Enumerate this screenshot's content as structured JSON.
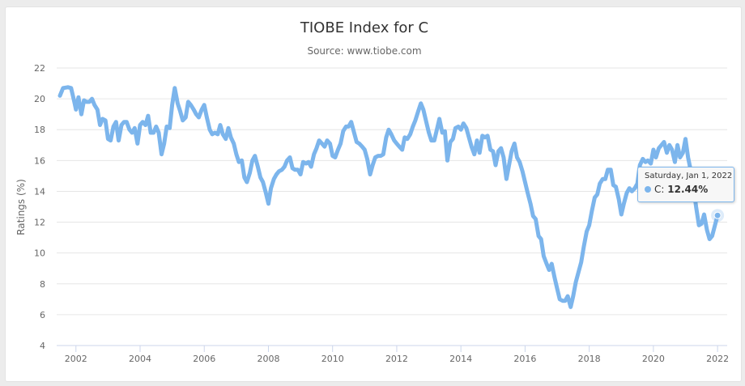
{
  "chart_data": {
    "type": "line",
    "title": "TIOBE Index for C",
    "subtitle": "Source: www.tiobe.com",
    "xlabel": "",
    "ylabel": "Ratings (%)",
    "xlim": [
      2001.4,
      2022.3
    ],
    "ylim": [
      4,
      22
    ],
    "x_ticks": [
      "2002",
      "2004",
      "2006",
      "2008",
      "2010",
      "2012",
      "2014",
      "2016",
      "2018",
      "2020",
      "2022"
    ],
    "y_ticks": [
      "4",
      "6",
      "8",
      "10",
      "12",
      "14",
      "16",
      "18",
      "20",
      "22"
    ],
    "grid": "horizontal",
    "legend": "none",
    "color": "#7cb5ec",
    "series": [
      {
        "points": [
          [
            2001.5,
            20.2
          ],
          [
            2001.6,
            20.7
          ],
          [
            2001.75,
            20.75
          ],
          [
            2001.85,
            20.7
          ],
          [
            2001.95,
            19.8
          ],
          [
            2002.0,
            19.3
          ],
          [
            2002.08,
            20.1
          ],
          [
            2002.17,
            19.0
          ],
          [
            2002.25,
            19.9
          ],
          [
            2002.33,
            19.8
          ],
          [
            2002.42,
            19.8
          ],
          [
            2002.5,
            20.0
          ],
          [
            2002.58,
            19.6
          ],
          [
            2002.67,
            19.3
          ],
          [
            2002.75,
            18.3
          ],
          [
            2002.83,
            18.7
          ],
          [
            2002.92,
            18.6
          ],
          [
            2003.0,
            17.4
          ],
          [
            2003.08,
            17.3
          ],
          [
            2003.17,
            18.2
          ],
          [
            2003.25,
            18.5
          ],
          [
            2003.33,
            17.3
          ],
          [
            2003.42,
            18.3
          ],
          [
            2003.5,
            18.5
          ],
          [
            2003.58,
            18.5
          ],
          [
            2003.67,
            18.0
          ],
          [
            2003.75,
            17.8
          ],
          [
            2003.83,
            18.1
          ],
          [
            2003.92,
            17.1
          ],
          [
            2004.0,
            18.3
          ],
          [
            2004.08,
            18.5
          ],
          [
            2004.17,
            18.3
          ],
          [
            2004.25,
            18.9
          ],
          [
            2004.33,
            17.8
          ],
          [
            2004.42,
            17.8
          ],
          [
            2004.5,
            18.2
          ],
          [
            2004.58,
            17.8
          ],
          [
            2004.67,
            16.4
          ],
          [
            2004.75,
            17.1
          ],
          [
            2004.83,
            18.2
          ],
          [
            2004.92,
            18.1
          ],
          [
            2005.0,
            19.6
          ],
          [
            2005.08,
            20.7
          ],
          [
            2005.17,
            19.7
          ],
          [
            2005.25,
            19.2
          ],
          [
            2005.33,
            18.6
          ],
          [
            2005.42,
            18.8
          ],
          [
            2005.5,
            19.8
          ],
          [
            2005.58,
            19.6
          ],
          [
            2005.67,
            19.3
          ],
          [
            2005.75,
            19.0
          ],
          [
            2005.83,
            18.8
          ],
          [
            2005.92,
            19.3
          ],
          [
            2006.0,
            19.6
          ],
          [
            2006.08,
            18.8
          ],
          [
            2006.17,
            18.0
          ],
          [
            2006.25,
            17.7
          ],
          [
            2006.33,
            17.8
          ],
          [
            2006.42,
            17.7
          ],
          [
            2006.5,
            18.3
          ],
          [
            2006.58,
            17.7
          ],
          [
            2006.67,
            17.4
          ],
          [
            2006.75,
            18.1
          ],
          [
            2006.83,
            17.5
          ],
          [
            2006.92,
            17.1
          ],
          [
            2007.0,
            16.4
          ],
          [
            2007.08,
            15.9
          ],
          [
            2007.17,
            16.0
          ],
          [
            2007.25,
            14.9
          ],
          [
            2007.33,
            14.6
          ],
          [
            2007.42,
            15.2
          ],
          [
            2007.5,
            16.0
          ],
          [
            2007.58,
            16.3
          ],
          [
            2007.67,
            15.6
          ],
          [
            2007.75,
            14.9
          ],
          [
            2007.83,
            14.6
          ],
          [
            2007.92,
            13.9
          ],
          [
            2008.0,
            13.2
          ],
          [
            2008.08,
            14.2
          ],
          [
            2008.17,
            14.8
          ],
          [
            2008.25,
            15.1
          ],
          [
            2008.33,
            15.3
          ],
          [
            2008.42,
            15.4
          ],
          [
            2008.5,
            15.6
          ],
          [
            2008.58,
            16.0
          ],
          [
            2008.67,
            16.2
          ],
          [
            2008.75,
            15.5
          ],
          [
            2008.83,
            15.4
          ],
          [
            2008.92,
            15.4
          ],
          [
            2009.0,
            15.1
          ],
          [
            2009.08,
            15.9
          ],
          [
            2009.17,
            15.8
          ],
          [
            2009.25,
            15.9
          ],
          [
            2009.33,
            15.6
          ],
          [
            2009.42,
            16.4
          ],
          [
            2009.5,
            16.8
          ],
          [
            2009.58,
            17.3
          ],
          [
            2009.67,
            17.1
          ],
          [
            2009.75,
            16.9
          ],
          [
            2009.83,
            17.3
          ],
          [
            2009.92,
            17.1
          ],
          [
            2010.0,
            16.3
          ],
          [
            2010.08,
            16.2
          ],
          [
            2010.17,
            16.7
          ],
          [
            2010.25,
            17.1
          ],
          [
            2010.33,
            17.9
          ],
          [
            2010.42,
            18.2
          ],
          [
            2010.5,
            18.2
          ],
          [
            2010.58,
            18.5
          ],
          [
            2010.67,
            17.8
          ],
          [
            2010.75,
            17.2
          ],
          [
            2010.83,
            17.1
          ],
          [
            2010.92,
            16.9
          ],
          [
            2011.0,
            16.7
          ],
          [
            2011.08,
            16.1
          ],
          [
            2011.17,
            15.1
          ],
          [
            2011.25,
            15.7
          ],
          [
            2011.33,
            16.2
          ],
          [
            2011.42,
            16.3
          ],
          [
            2011.5,
            16.3
          ],
          [
            2011.58,
            16.4
          ],
          [
            2011.67,
            17.5
          ],
          [
            2011.75,
            18.0
          ],
          [
            2011.83,
            17.7
          ],
          [
            2011.92,
            17.3
          ],
          [
            2012.0,
            17.1
          ],
          [
            2012.08,
            16.9
          ],
          [
            2012.17,
            16.7
          ],
          [
            2012.25,
            17.5
          ],
          [
            2012.33,
            17.4
          ],
          [
            2012.42,
            17.7
          ],
          [
            2012.5,
            18.2
          ],
          [
            2012.58,
            18.6
          ],
          [
            2012.67,
            19.2
          ],
          [
            2012.75,
            19.7
          ],
          [
            2012.83,
            19.3
          ],
          [
            2012.92,
            18.5
          ],
          [
            2013.0,
            17.8
          ],
          [
            2013.08,
            17.3
          ],
          [
            2013.17,
            17.3
          ],
          [
            2013.25,
            18.0
          ],
          [
            2013.33,
            18.7
          ],
          [
            2013.42,
            17.8
          ],
          [
            2013.5,
            17.9
          ],
          [
            2013.58,
            16.0
          ],
          [
            2013.67,
            17.2
          ],
          [
            2013.75,
            17.4
          ],
          [
            2013.83,
            18.1
          ],
          [
            2013.92,
            18.2
          ],
          [
            2014.0,
            18.0
          ],
          [
            2014.08,
            18.4
          ],
          [
            2014.17,
            18.1
          ],
          [
            2014.25,
            17.5
          ],
          [
            2014.33,
            16.9
          ],
          [
            2014.42,
            16.4
          ],
          [
            2014.5,
            17.3
          ],
          [
            2014.58,
            16.5
          ],
          [
            2014.67,
            17.6
          ],
          [
            2014.75,
            17.5
          ],
          [
            2014.83,
            17.6
          ],
          [
            2014.92,
            16.7
          ],
          [
            2015.0,
            16.6
          ],
          [
            2015.08,
            15.7
          ],
          [
            2015.17,
            16.6
          ],
          [
            2015.25,
            16.8
          ],
          [
            2015.33,
            16.2
          ],
          [
            2015.42,
            14.8
          ],
          [
            2015.5,
            15.7
          ],
          [
            2015.58,
            16.6
          ],
          [
            2015.67,
            17.1
          ],
          [
            2015.75,
            16.2
          ],
          [
            2015.83,
            15.9
          ],
          [
            2015.92,
            15.3
          ],
          [
            2016.0,
            14.6
          ],
          [
            2016.08,
            13.9
          ],
          [
            2016.17,
            13.2
          ],
          [
            2016.25,
            12.4
          ],
          [
            2016.33,
            12.2
          ],
          [
            2016.42,
            11.1
          ],
          [
            2016.5,
            10.9
          ],
          [
            2016.58,
            9.8
          ],
          [
            2016.67,
            9.3
          ],
          [
            2016.75,
            8.9
          ],
          [
            2016.83,
            9.3
          ],
          [
            2016.92,
            8.4
          ],
          [
            2017.0,
            7.7
          ],
          [
            2017.08,
            7.0
          ],
          [
            2017.17,
            6.9
          ],
          [
            2017.25,
            6.9
          ],
          [
            2017.33,
            7.2
          ],
          [
            2017.42,
            6.5
          ],
          [
            2017.5,
            7.2
          ],
          [
            2017.58,
            8.1
          ],
          [
            2017.67,
            8.8
          ],
          [
            2017.75,
            9.4
          ],
          [
            2017.83,
            10.4
          ],
          [
            2017.92,
            11.4
          ],
          [
            2018.0,
            11.8
          ],
          [
            2018.08,
            12.7
          ],
          [
            2018.17,
            13.6
          ],
          [
            2018.25,
            13.8
          ],
          [
            2018.33,
            14.5
          ],
          [
            2018.42,
            14.8
          ],
          [
            2018.5,
            14.8
          ],
          [
            2018.58,
            15.4
          ],
          [
            2018.67,
            15.4
          ],
          [
            2018.75,
            14.4
          ],
          [
            2018.83,
            14.3
          ],
          [
            2018.92,
            13.5
          ],
          [
            2019.0,
            12.5
          ],
          [
            2019.08,
            13.2
          ],
          [
            2019.17,
            13.9
          ],
          [
            2019.25,
            14.2
          ],
          [
            2019.33,
            14.0
          ],
          [
            2019.42,
            14.2
          ],
          [
            2019.5,
            14.5
          ],
          [
            2019.58,
            15.7
          ],
          [
            2019.67,
            16.1
          ],
          [
            2019.75,
            15.9
          ],
          [
            2019.83,
            16.0
          ],
          [
            2019.92,
            15.8
          ],
          [
            2020.0,
            16.7
          ],
          [
            2020.08,
            16.2
          ],
          [
            2020.17,
            16.8
          ],
          [
            2020.25,
            17.0
          ],
          [
            2020.33,
            17.2
          ],
          [
            2020.42,
            16.5
          ],
          [
            2020.5,
            17.0
          ],
          [
            2020.58,
            16.7
          ],
          [
            2020.67,
            15.9
          ],
          [
            2020.75,
            17.0
          ],
          [
            2020.83,
            16.2
          ],
          [
            2020.92,
            16.5
          ],
          [
            2021.0,
            17.4
          ],
          [
            2021.08,
            16.2
          ],
          [
            2021.17,
            15.3
          ],
          [
            2021.25,
            14.3
          ],
          [
            2021.33,
            13.0
          ],
          [
            2021.42,
            11.8
          ],
          [
            2021.5,
            11.9
          ],
          [
            2021.58,
            12.5
          ],
          [
            2021.67,
            11.5
          ],
          [
            2021.75,
            10.9
          ],
          [
            2021.83,
            11.1
          ],
          [
            2021.92,
            11.8
          ],
          [
            2022.0,
            12.44
          ]
        ]
      }
    ],
    "tooltip": {
      "date": "Saturday, Jan 1, 2022",
      "series_label": "C:",
      "value": "12.44%"
    }
  }
}
